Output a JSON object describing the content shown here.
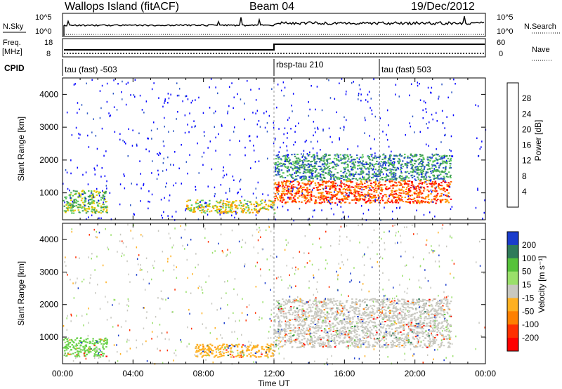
{
  "header": {
    "station": "Wallops Island (fitACF)",
    "beam": "Beam 04",
    "date": "19/Dec/2012"
  },
  "top_panels": {
    "nsky_label": "N.Sky",
    "nsky_left_ticks": [
      "10^5",
      "10^0"
    ],
    "nsky_right_ticks": [
      "10^5",
      "10^0"
    ],
    "nsearch_label": "N.Search",
    "freq_label_1": "Freq.",
    "freq_label_2": "[MHz]",
    "freq_ticks": [
      "18",
      "8"
    ],
    "nave_ticks": [
      "60",
      "0"
    ],
    "nave_label": "Nave",
    "cpid_label": "CPID",
    "cpid_segments": [
      {
        "label": "tau (fast) -503",
        "start_h": 0
      },
      {
        "label": "rbsp-tau 210",
        "start_h": 12
      },
      {
        "label": "tau (fast) 503",
        "start_h": 18
      }
    ]
  },
  "chart_data": [
    {
      "type": "heatmap",
      "name": "Power",
      "ylabel": "Slant Range [km]",
      "xlabel": "Time UT",
      "x_ticks": [
        "00:00",
        "04:00",
        "08:00",
        "12:00",
        "16:00",
        "20:00",
        "00:00"
      ],
      "xlim_hours": [
        0,
        24
      ],
      "y_ticks": [
        "1000",
        "2000",
        "3000",
        "4000"
      ],
      "ylim_km": [
        180,
        4500
      ],
      "colorbar_label": "Power [dB]",
      "colorbar_ticks": [
        "4",
        "8",
        "12",
        "16",
        "20",
        "24",
        "28"
      ],
      "colorbar_colors": [
        "#0000ff",
        "#2a55c4",
        "#3c9a52",
        "#5cc85c",
        "#e8c800",
        "#ff9a00",
        "#ff5a00",
        "#ff0000"
      ],
      "echo_regions": [
        {
          "t0": 0.0,
          "t1": 2.5,
          "r0": 400,
          "r1": 1100,
          "level": 3
        },
        {
          "t0": 7.0,
          "t1": 12.0,
          "r0": 400,
          "r1": 800,
          "level": 4
        },
        {
          "t0": 12.0,
          "t1": 22.0,
          "r0": 700,
          "r1": 1400,
          "level": 6
        },
        {
          "t0": 12.0,
          "t1": 22.0,
          "r0": 1400,
          "r1": 2200,
          "level": 2
        }
      ]
    },
    {
      "type": "heatmap",
      "name": "Velocity",
      "ylabel": "Slant Range [km]",
      "xlabel": "Time UT",
      "x_ticks": [
        "00:00",
        "04:00",
        "08:00",
        "12:00",
        "16:00",
        "20:00",
        "00:00"
      ],
      "xlim_hours": [
        0,
        24
      ],
      "y_ticks": [
        "1000",
        "2000",
        "3000",
        "4000"
      ],
      "ylim_km": [
        180,
        4500
      ],
      "colorbar_label": "Velocity [m s⁻¹]",
      "colorbar_ticks": [
        "200",
        "100",
        "50",
        "15",
        "-15",
        "-50",
        "-100",
        "-200"
      ],
      "colorbar_colors": [
        "#1a3ccc",
        "#2f7a5a",
        "#56c23a",
        "#9ae06a",
        "#c8c8c0",
        "#ffb020",
        "#ff8000",
        "#ff3000",
        "#ff0000"
      ],
      "echo_regions": [
        {
          "t0": 0.0,
          "t1": 2.5,
          "r0": 400,
          "r1": 1000,
          "color": "#6ad24a"
        },
        {
          "t0": 7.5,
          "t1": 12.0,
          "r0": 400,
          "r1": 800,
          "color": "#ffb020"
        },
        {
          "t0": 12.0,
          "t1": 22.0,
          "r0": 700,
          "r1": 1400,
          "color": "#c8c8c0"
        },
        {
          "t0": 12.0,
          "t1": 22.0,
          "r0": 1400,
          "r1": 2200,
          "color": "#c8c8c0"
        }
      ]
    }
  ]
}
